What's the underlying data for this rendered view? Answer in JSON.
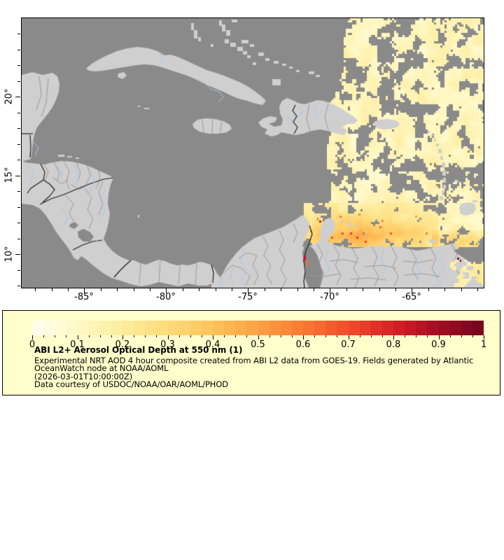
{
  "map": {
    "colors": {
      "ocean": "#8A8A8A",
      "land": "#CFCFCF",
      "country_border": "#1f1f1f",
      "admin_border": "#9A9A9A",
      "river": "#A6C8E8",
      "lake": "#8A8A8A",
      "hotspot_red": "#D01020",
      "hotspot_orange": "#F07430",
      "hotspot_darkred": "#8E0823"
    },
    "x_axis": {
      "major_ticks": [
        {
          "lon": -85,
          "label": "-85°"
        },
        {
          "lon": -80,
          "label": "-80°"
        },
        {
          "lon": -75,
          "label": "-75°"
        },
        {
          "lon": -70,
          "label": "-70°"
        },
        {
          "lon": -65,
          "label": "-65°"
        }
      ],
      "minor_lons": [
        -88,
        -87,
        -86,
        -84,
        -83,
        -82,
        -81,
        -79,
        -78,
        -77,
        -76,
        -74,
        -73,
        -72,
        -71,
        -69,
        -68,
        -67,
        -66,
        -64,
        -63,
        -62,
        -61
      ]
    },
    "y_axis": {
      "major_ticks": [
        {
          "lat": 20,
          "label": "20°"
        },
        {
          "lat": 15,
          "label": "15°"
        },
        {
          "lat": 10,
          "label": "10°"
        }
      ],
      "minor_lats": [
        24,
        23,
        22,
        21,
        19,
        18,
        17,
        16,
        14,
        13,
        12,
        11,
        9,
        8
      ]
    }
  },
  "aod_palette": {
    "anchors": [
      "#FFFFF2",
      "#FFF8C4",
      "#FEEC9C",
      "#FEDB7A",
      "#FEC35C",
      "#FDA144",
      "#FA7A33",
      "#EF4C2A",
      "#D62026",
      "#A30D24",
      "#72051F"
    ]
  },
  "legend": {
    "background": "#FFFFCC",
    "colorbar": {
      "steps": 40,
      "minor_ticks_per_interval": 4,
      "tick_labels": [
        "0",
        "0.1",
        "0.2",
        "0.3",
        "0.4",
        "0.5",
        "0.6",
        "0.7",
        "0.8",
        "0.9",
        "1"
      ]
    },
    "title": "ABI L2+ Aerosol Optical Depth at 550 nm (1)",
    "lines": [
      "Experimental NRT AOD 4 hour composite created from ABI L2 data from GOES-19. Fields generated by Atlantic",
      "OceanWatch node at NOAA/AOML",
      "(2026-03-01T10:00:00Z)",
      "Data courtesy of USDOC/NOAA/OAR/AOML/PHOD"
    ]
  }
}
